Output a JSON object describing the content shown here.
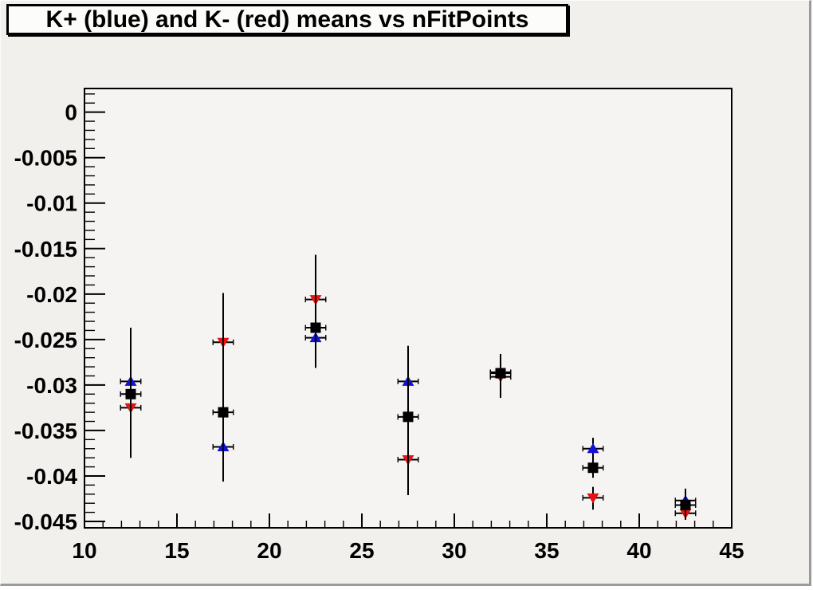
{
  "chart_data": {
    "type": "scatter",
    "title": "K+ (blue) and K- (red) means vs nFitPoints",
    "xlim": [
      10,
      45
    ],
    "ylim": [
      -0.0457,
      0.0026
    ],
    "grid": false,
    "x_major_ticks": [
      10,
      15,
      20,
      25,
      30,
      35,
      40,
      45
    ],
    "x_tick_labels": [
      "10",
      "15",
      "20",
      "25",
      "30",
      "35",
      "40",
      "45"
    ],
    "x_minor_step": 1,
    "y_major_ticks": [
      0,
      -0.005,
      -0.01,
      -0.015,
      -0.02,
      -0.025,
      -0.03,
      -0.035,
      -0.04,
      -0.045
    ],
    "y_tick_labels": [
      "0",
      "-0.005",
      "-0.01",
      "-0.015",
      "-0.02",
      "-0.025",
      "-0.03",
      "-0.035",
      "-0.04",
      "-0.045"
    ],
    "y_minor_step": 0.001,
    "x_error_half_width": 0.55,
    "colors": {
      "k_plus_blue": "#1212d6",
      "k_minus_red": "#e81212",
      "combined_black": "#000000",
      "frame_border": "#000000",
      "canvas_bg": "#f1f0ed",
      "frame_bg": "#f5f4f2",
      "title_bg": "#fcfcfb",
      "window_shadow": "#9b9b9b"
    },
    "series": [
      {
        "name": "K+ means (blue)",
        "marker": "triangle-up",
        "color": "#1212d6",
        "points": [
          {
            "x": 12.5,
            "y": -0.0296,
            "y_err_low": -0.038,
            "y_err_high": -0.0237
          },
          {
            "x": 17.5,
            "y": -0.0368,
            "y_err_low": -0.0406,
            "y_err_high": -0.0199
          },
          {
            "x": 22.5,
            "y": -0.0248,
            "y_err_low": -0.0281,
            "y_err_high": -0.0157
          },
          {
            "x": 27.5,
            "y": -0.0296,
            "y_err_low": -0.0421,
            "y_err_high": -0.0257
          },
          {
            "x": 32.5,
            "y": -0.0286,
            "y_err_low": -0.0314,
            "y_err_high": -0.0266
          },
          {
            "x": 37.5,
            "y": -0.037,
            "y_err_low": -0.0382,
            "y_err_high": -0.0358
          },
          {
            "x": 42.5,
            "y": -0.0427,
            "y_err_low": -0.0448,
            "y_err_high": -0.0414
          }
        ]
      },
      {
        "name": "K- means (red)",
        "marker": "triangle-down",
        "color": "#e81212",
        "points": [
          {
            "x": 12.5,
            "y": -0.0325,
            "y_err_low": -0.038,
            "y_err_high": -0.0237
          },
          {
            "x": 17.5,
            "y": -0.0253,
            "y_err_low": -0.0406,
            "y_err_high": -0.0199
          },
          {
            "x": 22.5,
            "y": -0.0206,
            "y_err_low": -0.0281,
            "y_err_high": -0.0157
          },
          {
            "x": 27.5,
            "y": -0.0382,
            "y_err_low": -0.0421,
            "y_err_high": -0.0257
          },
          {
            "x": 32.5,
            "y": -0.0291,
            "y_err_low": -0.0314,
            "y_err_high": -0.0266
          },
          {
            "x": 37.5,
            "y": -0.0424,
            "y_err_low": -0.0437,
            "y_err_high": -0.0412
          },
          {
            "x": 42.5,
            "y": -0.0441,
            "y_err_low": -0.0448,
            "y_err_high": -0.0414
          }
        ]
      },
      {
        "name": "combined mean (black)",
        "marker": "square",
        "color": "#000000",
        "points": [
          {
            "x": 12.5,
            "y": -0.031,
            "y_err_low": -0.038,
            "y_err_high": -0.0237
          },
          {
            "x": 17.5,
            "y": -0.033,
            "y_err_low": -0.0406,
            "y_err_high": -0.0199
          },
          {
            "x": 22.5,
            "y": -0.0237,
            "y_err_low": -0.0281,
            "y_err_high": -0.0157
          },
          {
            "x": 27.5,
            "y": -0.0335,
            "y_err_low": -0.0421,
            "y_err_high": -0.0257
          },
          {
            "x": 32.5,
            "y": -0.0287,
            "y_err_low": -0.0314,
            "y_err_high": -0.0266
          },
          {
            "x": 37.5,
            "y": -0.0391,
            "y_err_low": -0.0402,
            "y_err_high": -0.038
          },
          {
            "x": 42.5,
            "y": -0.0432,
            "y_err_low": -0.0448,
            "y_err_high": -0.0414
          }
        ]
      }
    ]
  }
}
